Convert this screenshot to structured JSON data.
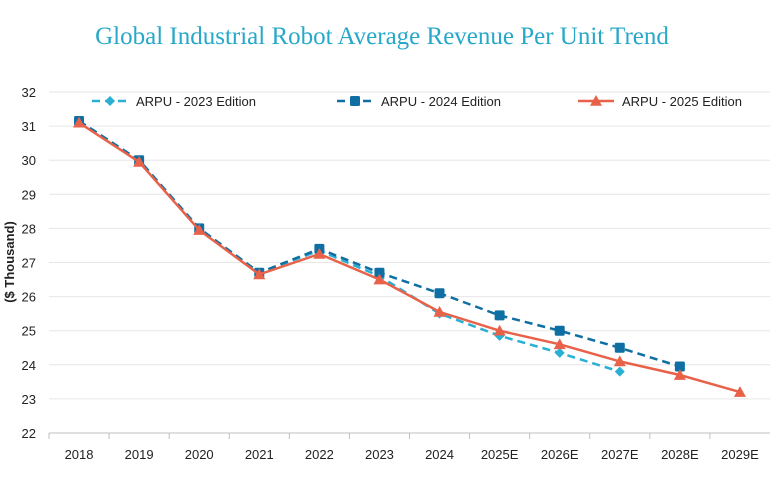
{
  "chart_data": {
    "type": "line",
    "title": "Global Industrial Robot Average Revenue Per Unit Trend",
    "ylabel": "($ Thousand)",
    "xlabel": "",
    "ylim": [
      22,
      32
    ],
    "yticks": [
      22,
      23,
      24,
      25,
      26,
      27,
      28,
      29,
      30,
      31,
      32
    ],
    "categories": [
      "2018",
      "2019",
      "2020",
      "2021",
      "2022",
      "2023",
      "2024",
      "2025E",
      "2026E",
      "2027E",
      "2028E",
      "2029E"
    ],
    "grid": true,
    "legend_position": "top",
    "series": [
      {
        "name": "ARPU - 2023 Edition",
        "color": "#2ab0d4",
        "marker": "diamond",
        "dash": true,
        "values": [
          31.15,
          30.0,
          28.0,
          26.7,
          27.35,
          26.6,
          25.5,
          24.85,
          24.35,
          23.8,
          null,
          null
        ]
      },
      {
        "name": "ARPU - 2024 Edition",
        "color": "#0f6fa3",
        "marker": "square",
        "dash": true,
        "values": [
          31.15,
          30.0,
          28.0,
          26.7,
          27.4,
          26.7,
          26.1,
          25.45,
          25.0,
          24.5,
          23.95,
          null
        ]
      },
      {
        "name": "ARPU - 2025 Edition",
        "color": "#e8624a",
        "marker": "triangle",
        "dash": false,
        "values": [
          31.1,
          29.95,
          27.95,
          26.65,
          27.25,
          26.5,
          25.55,
          25.0,
          24.6,
          24.1,
          23.7,
          23.2
        ]
      }
    ]
  }
}
